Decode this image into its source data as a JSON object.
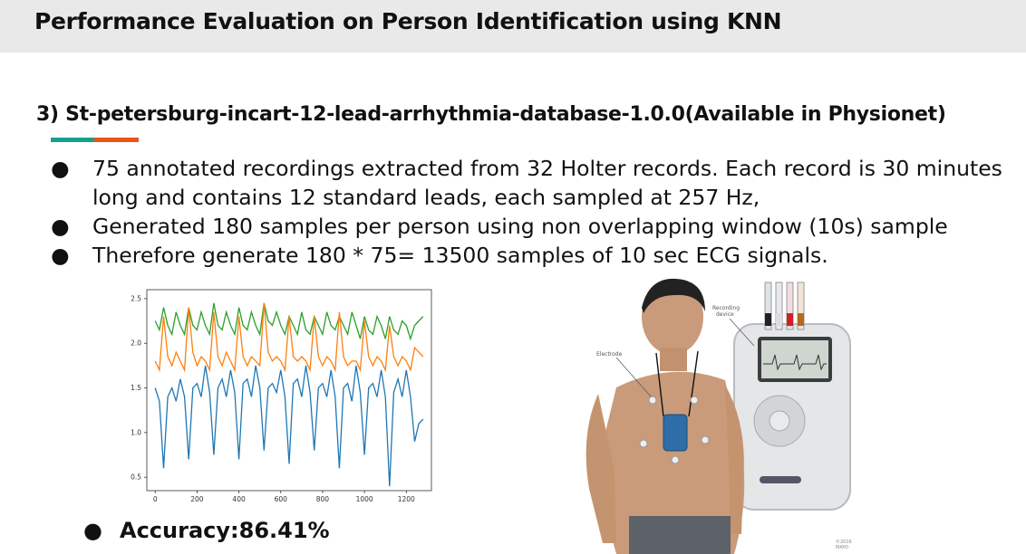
{
  "header": {
    "title": "Performance Evaluation  on Person Identification using KNN"
  },
  "section": {
    "title": "3) St-petersburg-incart-12-lead-arrhythmia-database-1.0.0(Available in Physionet)"
  },
  "bullets": [
    "75 annotated recordings extracted from 32 Holter records. Each record is 30 minutes long and contains 12 standard leads, each sampled at 257 Hz,",
    "Generated  180 samples per person using non overlapping window (10s) sample",
    "Therefore generate 180 * 75= 13500 samples of 10 sec ECG signals."
  ],
  "bullet_glyph": "●",
  "accuracy": {
    "text": "Accuracy:86.41%"
  },
  "illustration": {
    "label_recording": "Recording",
    "label_device": "device",
    "label_electrode": "Electrode",
    "copyright_year": "©2016",
    "copyright_org": "MAYO"
  },
  "chart_data": {
    "type": "line",
    "xlim": [
      -40,
      1320
    ],
    "ylim": [
      0.35,
      2.6
    ],
    "xticks": [
      0,
      200,
      400,
      600,
      800,
      1000,
      1200
    ],
    "yticks": [
      0.5,
      1.0,
      1.5,
      2.0,
      2.5
    ],
    "xtick_labels": [
      "0",
      "200",
      "400",
      "600",
      "800",
      "1000",
      "1200"
    ],
    "ytick_labels": [
      "0.5",
      "1.0",
      "1.5",
      "2.0",
      "2.5"
    ],
    "grid": false,
    "series": [
      {
        "color": "#2ca02c",
        "x": [
          0,
          20,
          40,
          60,
          80,
          100,
          120,
          140,
          160,
          180,
          200,
          220,
          240,
          260,
          280,
          300,
          320,
          340,
          360,
          380,
          400,
          420,
          440,
          460,
          480,
          500,
          520,
          540,
          560,
          580,
          600,
          620,
          640,
          660,
          680,
          700,
          720,
          740,
          760,
          780,
          800,
          820,
          840,
          860,
          880,
          900,
          920,
          940,
          960,
          980,
          1000,
          1020,
          1040,
          1060,
          1080,
          1100,
          1120,
          1140,
          1160,
          1180,
          1200,
          1220,
          1240,
          1260,
          1280
        ],
        "values": [
          2.25,
          2.15,
          2.4,
          2.2,
          2.1,
          2.35,
          2.2,
          2.1,
          2.4,
          2.2,
          2.15,
          2.35,
          2.2,
          2.1,
          2.45,
          2.2,
          2.15,
          2.35,
          2.2,
          2.1,
          2.4,
          2.2,
          2.15,
          2.35,
          2.2,
          2.1,
          2.45,
          2.25,
          2.2,
          2.35,
          2.2,
          2.1,
          2.3,
          2.2,
          2.1,
          2.35,
          2.15,
          2.1,
          2.3,
          2.2,
          2.1,
          2.35,
          2.2,
          2.15,
          2.3,
          2.2,
          2.1,
          2.35,
          2.2,
          2.05,
          2.3,
          2.15,
          2.1,
          2.3,
          2.2,
          2.05,
          2.3,
          2.15,
          2.1,
          2.25,
          2.2,
          2.05,
          2.2,
          2.25,
          2.3
        ]
      },
      {
        "color": "#ff7f0e",
        "x": [
          0,
          20,
          40,
          60,
          80,
          100,
          120,
          140,
          160,
          180,
          200,
          220,
          240,
          260,
          280,
          300,
          320,
          340,
          360,
          380,
          400,
          420,
          440,
          460,
          480,
          500,
          520,
          540,
          560,
          580,
          600,
          620,
          640,
          660,
          680,
          700,
          720,
          740,
          760,
          780,
          800,
          820,
          840,
          860,
          880,
          900,
          920,
          940,
          960,
          980,
          1000,
          1020,
          1040,
          1060,
          1080,
          1100,
          1120,
          1140,
          1160,
          1180,
          1200,
          1220,
          1240,
          1260,
          1280
        ],
        "values": [
          1.8,
          1.7,
          2.3,
          1.85,
          1.75,
          1.9,
          1.8,
          1.7,
          2.4,
          1.9,
          1.75,
          1.85,
          1.8,
          1.7,
          2.35,
          1.85,
          1.75,
          1.9,
          1.8,
          1.7,
          2.3,
          1.85,
          1.75,
          1.85,
          1.8,
          1.75,
          2.45,
          1.9,
          1.8,
          1.85,
          1.8,
          1.7,
          2.3,
          1.85,
          1.8,
          1.85,
          1.8,
          1.7,
          2.3,
          1.85,
          1.75,
          1.85,
          1.8,
          1.7,
          2.35,
          1.85,
          1.75,
          1.8,
          1.8,
          1.7,
          2.25,
          1.85,
          1.75,
          1.85,
          1.8,
          1.7,
          2.2,
          1.85,
          1.75,
          1.85,
          1.8,
          1.7,
          1.95,
          1.9,
          1.85
        ]
      },
      {
        "color": "#1f77b4",
        "x": [
          0,
          20,
          40,
          60,
          80,
          100,
          120,
          140,
          160,
          180,
          200,
          220,
          240,
          260,
          280,
          300,
          320,
          340,
          360,
          380,
          400,
          420,
          440,
          460,
          480,
          500,
          520,
          540,
          560,
          580,
          600,
          620,
          640,
          660,
          680,
          700,
          720,
          740,
          760,
          780,
          800,
          820,
          840,
          860,
          880,
          900,
          920,
          940,
          960,
          980,
          1000,
          1020,
          1040,
          1060,
          1080,
          1100,
          1120,
          1140,
          1160,
          1180,
          1200,
          1220,
          1240,
          1260,
          1280
        ],
        "values": [
          1.5,
          1.35,
          0.6,
          1.4,
          1.5,
          1.35,
          1.6,
          1.4,
          0.7,
          1.5,
          1.55,
          1.4,
          1.75,
          1.45,
          0.75,
          1.5,
          1.6,
          1.4,
          1.7,
          1.45,
          0.7,
          1.55,
          1.6,
          1.4,
          1.75,
          1.5,
          0.8,
          1.5,
          1.55,
          1.45,
          1.7,
          1.4,
          0.65,
          1.55,
          1.6,
          1.4,
          1.75,
          1.45,
          0.8,
          1.5,
          1.55,
          1.4,
          1.7,
          1.4,
          0.6,
          1.5,
          1.55,
          1.35,
          1.75,
          1.45,
          0.75,
          1.5,
          1.55,
          1.4,
          1.7,
          1.4,
          0.4,
          1.45,
          1.6,
          1.4,
          1.7,
          1.4,
          0.9,
          1.1,
          1.15
        ]
      }
    ]
  }
}
